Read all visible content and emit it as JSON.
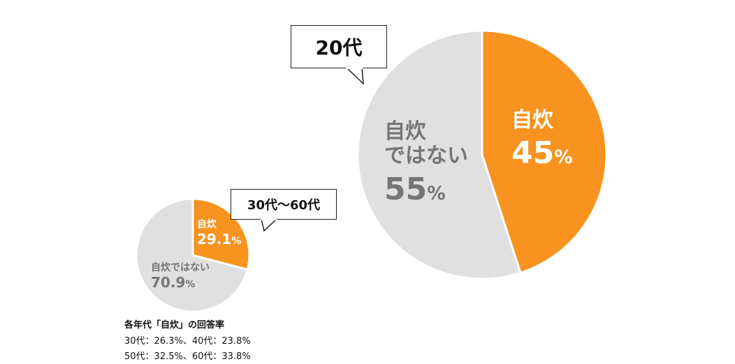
{
  "chart_data": [
    {
      "type": "pie",
      "title": "20代",
      "slices": [
        {
          "label": "自炊",
          "value": 45,
          "display": "45",
          "color": "#F7931E"
        },
        {
          "label": "自炊ではない",
          "value": 55,
          "display": "55",
          "color": "#E0E0E0"
        }
      ]
    },
    {
      "type": "pie",
      "title": "30代～60代",
      "slices": [
        {
          "label": "自炊",
          "value": 29.1,
          "display": "29.1",
          "color": "#F7931E"
        },
        {
          "label": "自炊ではない",
          "value": 70.9,
          "display": "70.9",
          "color": "#E0E0E0"
        }
      ]
    }
  ],
  "labels": {
    "pct": "%",
    "big_not_line1": "自炊",
    "big_not_line2": "ではない"
  },
  "notes": {
    "title": "各年代「自炊」の回答率",
    "line1": "30代：26.3%、40代：23.8%",
    "line2": "50代：32.5%、60代：33.8%"
  },
  "colors": {
    "orange": "#F7931E",
    "gray_slice": "#E0E0E0",
    "gray_text": "#757575",
    "white": "#ffffff"
  }
}
